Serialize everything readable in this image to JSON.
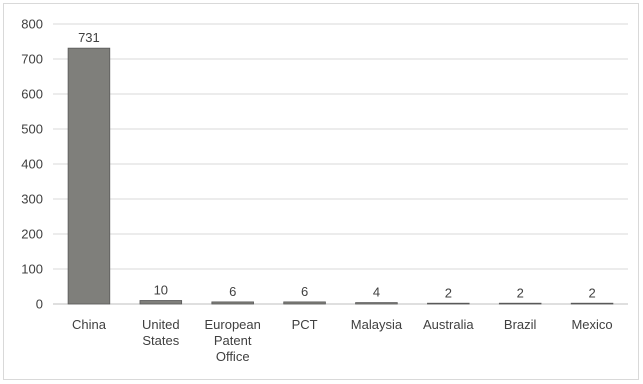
{
  "chart_data": {
    "type": "bar",
    "categories": [
      [
        "China"
      ],
      [
        "United",
        "States"
      ],
      [
        "European",
        "Patent",
        "Office"
      ],
      [
        "PCT"
      ],
      [
        "Malaysia"
      ],
      [
        "Australia"
      ],
      [
        "Brazil"
      ],
      [
        "Mexico"
      ]
    ],
    "values": [
      731,
      10,
      6,
      6,
      4,
      2,
      2,
      2
    ],
    "data_labels": [
      "731",
      "10",
      "6",
      "6",
      "4",
      "2",
      "2",
      "2"
    ],
    "title": "",
    "xlabel": "",
    "ylabel": "",
    "ylim": [
      0,
      800
    ],
    "yticks": [
      "0",
      "100",
      "200",
      "300",
      "400",
      "500",
      "600",
      "700",
      "800"
    ],
    "grid": true,
    "legend": "none",
    "bar_color": "#7f7f7b",
    "bar_edge_color": "#595959",
    "grid_color": "#d9d9d9"
  }
}
